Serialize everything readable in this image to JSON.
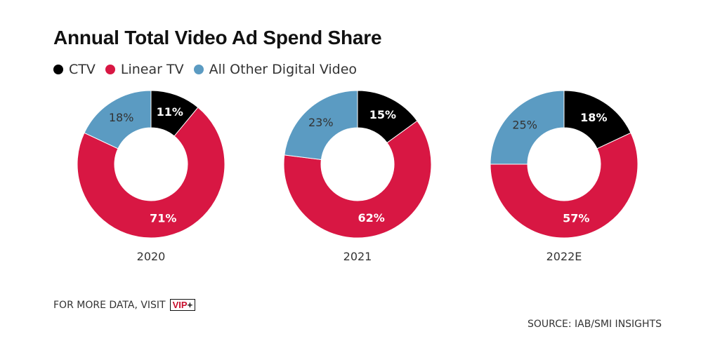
{
  "chart_data": {
    "type": "pie",
    "subtype": "donut",
    "title": "Annual Total Video Ad Spend Share",
    "series_names": [
      "CTV",
      "Linear TV",
      "All Other Digital Video"
    ],
    "colors": {
      "CTV": "#000000",
      "Linear TV": "#d81743",
      "All Other Digital Video": "#5b9bc2"
    },
    "charts": [
      {
        "label": "2020",
        "values": [
          11,
          71,
          18
        ],
        "labels": [
          "11%",
          "71%",
          "18%"
        ]
      },
      {
        "label": "2021",
        "values": [
          15,
          62,
          23
        ],
        "labels": [
          "15%",
          "62%",
          "23%"
        ]
      },
      {
        "label": "2022E",
        "values": [
          18,
          57,
          25
        ],
        "labels": [
          "18%",
          "57%",
          "25%"
        ]
      }
    ],
    "legend_position": "top-left",
    "label_colors": [
      "#ffffff",
      "#ffffff",
      "#333333"
    ]
  },
  "footer": {
    "more_data": "FOR MORE DATA, VISIT",
    "logo_text": "VIP",
    "logo_plus": "+",
    "source": "SOURCE: IAB/SMI INSIGHTS"
  }
}
